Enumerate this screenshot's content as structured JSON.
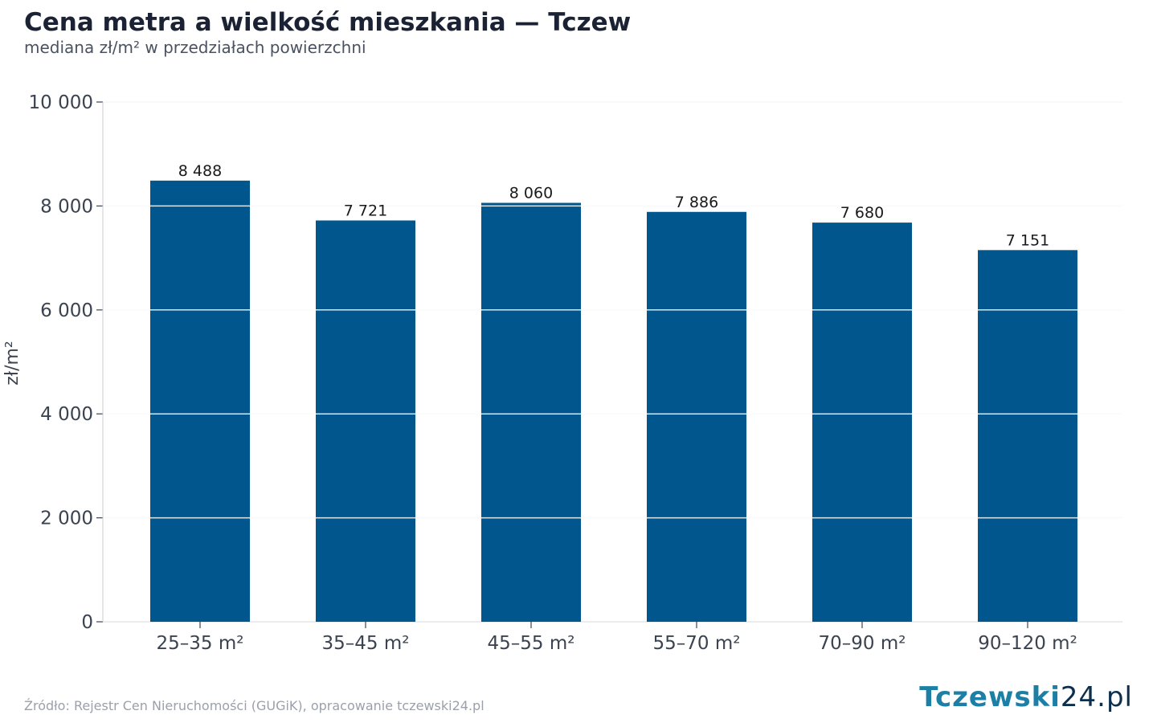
{
  "header": {
    "title": "Cena metra a wielkość mieszkania — Tczew",
    "subtitle": "mediana zł/m² w przedziałach powierzchni"
  },
  "footer": {
    "source": "Źródło: Rejestr Cen Nieruchomości (GUGiK), opracowanie tczewski24.pl",
    "logo_main": "Tczewski",
    "logo_num": "24",
    "logo_tld": ".pl"
  },
  "colors": {
    "bar": "#01568e",
    "grid": "#e3e5e8",
    "axis_text": "#3b4351",
    "label_text": "#1a1a1a"
  },
  "chart_data": {
    "type": "bar",
    "categories": [
      "25–35 m²",
      "35–45 m²",
      "45–55 m²",
      "55–70 m²",
      "70–90 m²",
      "90–120 m²"
    ],
    "values": [
      8488,
      7721,
      8060,
      7886,
      7680,
      7151
    ],
    "value_labels": [
      "8 488",
      "7 721",
      "8 060",
      "7 886",
      "7 680",
      "7 151"
    ],
    "ylabel": "zł/m²",
    "xlabel": "",
    "ylim": [
      0,
      10000
    ],
    "yticks": [
      0,
      2000,
      4000,
      6000,
      8000,
      10000
    ],
    "ytick_labels": [
      "0",
      "2 000",
      "4 000",
      "6 000",
      "8 000",
      "10 000"
    ],
    "grid": true
  }
}
